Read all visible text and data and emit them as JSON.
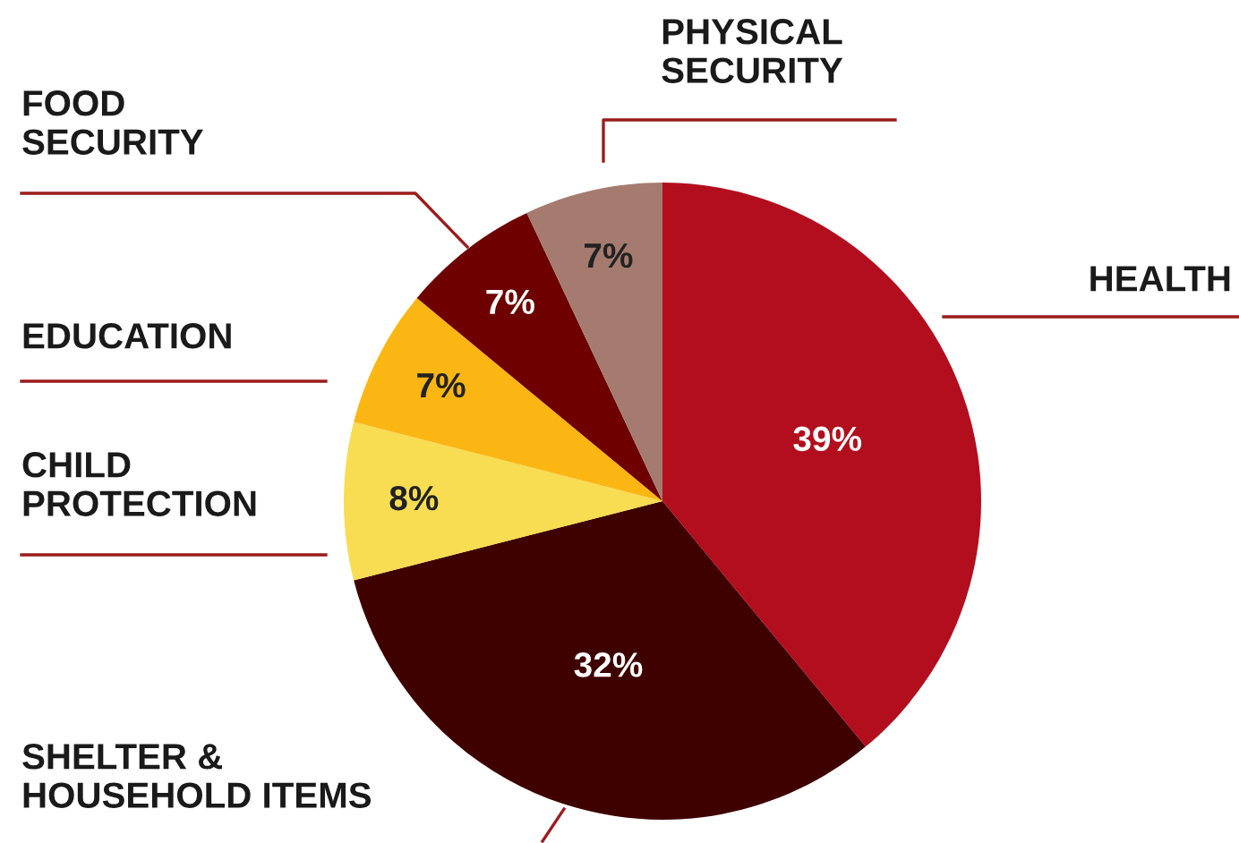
{
  "chart_data": {
    "type": "pie",
    "categories": [
      "HEALTH",
      "SHELTER &\nHOUSEHOLD ITEMS",
      "CHILD\nPROTECTION",
      "EDUCATION",
      "FOOD\nSECURITY",
      "PHYSICAL\nSECURITY"
    ],
    "values": [
      39,
      32,
      8,
      7,
      7,
      7
    ],
    "value_labels": [
      "39%",
      "32%",
      "8%",
      "7%",
      "7%",
      "7%"
    ],
    "colors": [
      "#b30e1d",
      "#3f0000",
      "#f8dc52",
      "#fbb614",
      "#6e0000",
      "#a67b6f"
    ],
    "legend": false
  }
}
